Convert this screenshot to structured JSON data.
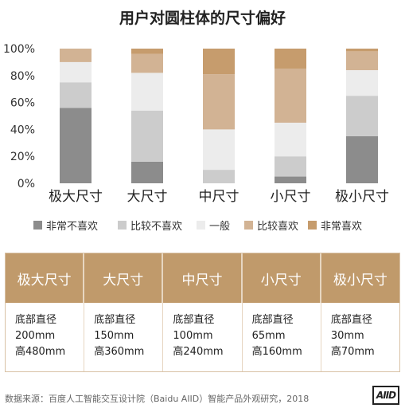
{
  "chart_data": {
    "type": "bar",
    "stacked": "percent",
    "title": "用户对圆柱体的尺寸偏好",
    "categories": [
      "极大尺寸",
      "大尺寸",
      "中尺寸",
      "小尺寸",
      "极小尺寸"
    ],
    "ylim": [
      0,
      100
    ],
    "yticks": [
      "0%",
      "20%",
      "40%",
      "60%",
      "80%",
      "100%"
    ],
    "legend_position": "bottom",
    "series": [
      {
        "name": "非常不喜欢",
        "color": "#8c8c8c",
        "values": [
          56,
          16,
          0,
          5,
          35
        ]
      },
      {
        "name": "比较不喜欢",
        "color": "#cccccc",
        "values": [
          19,
          38,
          10,
          15,
          30
        ]
      },
      {
        "name": "一般",
        "color": "#ececec",
        "values": [
          15,
          28,
          30,
          25,
          19
        ]
      },
      {
        "name": "比较喜欢",
        "color": "#d2b394",
        "values": [
          10,
          14,
          41,
          40,
          14
        ]
      },
      {
        "name": "非常喜欢",
        "color": "#c69c6d",
        "values": [
          0,
          4,
          19,
          15,
          2
        ]
      }
    ]
  },
  "table": {
    "columns": [
      {
        "head": "极大尺寸",
        "line1": "底部直径",
        "line2": "200mm",
        "line3": "高480mm"
      },
      {
        "head": "大尺寸",
        "line1": "底部直径",
        "line2": "150mm",
        "line3": "高360mm"
      },
      {
        "head": "中尺寸",
        "line1": "底部直径",
        "line2": "100mm",
        "line3": "高240mm"
      },
      {
        "head": "小尺寸",
        "line1": "底部直径",
        "line2": "65mm",
        "line3": "高160mm"
      },
      {
        "head": "极小尺寸",
        "line1": "底部直径",
        "line2": "30mm",
        "line3": "高70mm"
      }
    ]
  },
  "source": "数据来源：百度人工智能交互设计院（Baidu AIID）智能产品外观研究，2018",
  "logo_text": "AIID"
}
